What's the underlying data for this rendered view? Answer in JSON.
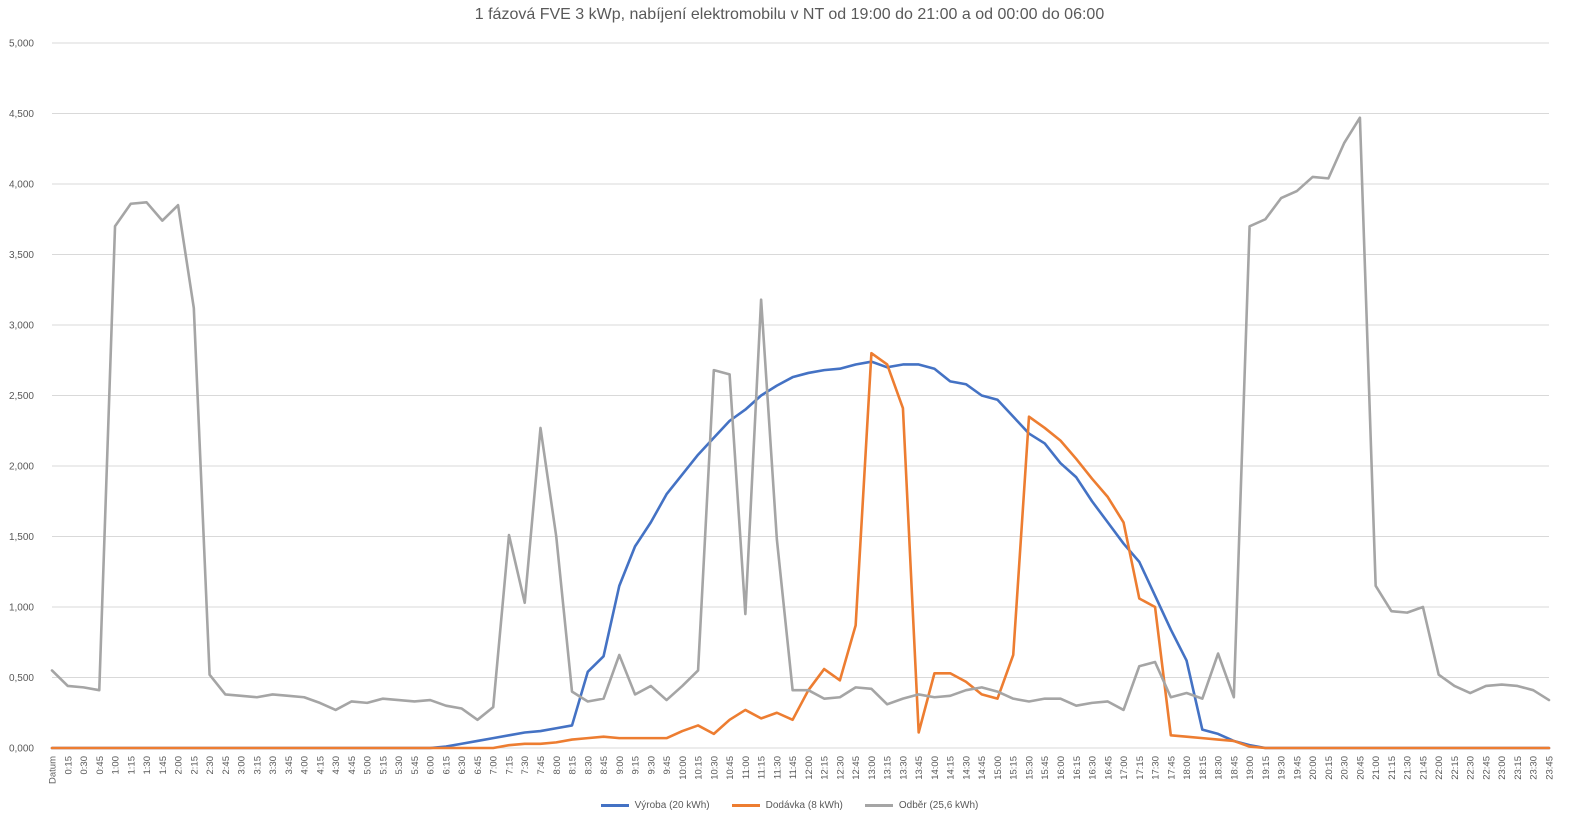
{
  "chart_data": {
    "type": "line",
    "title": "1 fázová FVE 3 kWp, nabíjení elektromobilu v NT od 19:00 do 21:00 a od  00:00 do 06:00",
    "xlabel": "",
    "ylabel": "",
    "ylim": [
      0,
      5
    ],
    "yticks": [
      "0,000",
      "0,500",
      "1,000",
      "1,500",
      "2,000",
      "2,500",
      "3,000",
      "3,500",
      "4,000",
      "4,500",
      "5,000"
    ],
    "grid": true,
    "legend_position": "bottom",
    "categories": [
      "Datum",
      "0:15",
      "0:30",
      "0:45",
      "1:00",
      "1:15",
      "1:30",
      "1:45",
      "2:00",
      "2:15",
      "2:30",
      "2:45",
      "3:00",
      "3:15",
      "3:30",
      "3:45",
      "4:00",
      "4:15",
      "4:30",
      "4:45",
      "5:00",
      "5:15",
      "5:30",
      "5:45",
      "6:00",
      "6:15",
      "6:30",
      "6:45",
      "7:00",
      "7:15",
      "7:30",
      "7:45",
      "8:00",
      "8:15",
      "8:30",
      "8:45",
      "9:00",
      "9:15",
      "9:30",
      "9:45",
      "10:00",
      "10:15",
      "10:30",
      "10:45",
      "11:00",
      "11:15",
      "11:30",
      "11:45",
      "12:00",
      "12:15",
      "12:30",
      "12:45",
      "13:00",
      "13:15",
      "13:30",
      "13:45",
      "14:00",
      "14:15",
      "14:30",
      "14:45",
      "15:00",
      "15:15",
      "15:30",
      "15:45",
      "16:00",
      "16:15",
      "16:30",
      "16:45",
      "17:00",
      "17:15",
      "17:30",
      "17:45",
      "18:00",
      "18:15",
      "18:30",
      "18:45",
      "19:00",
      "19:15",
      "19:30",
      "19:45",
      "20:00",
      "20:15",
      "20:30",
      "20:45",
      "21:00",
      "21:15",
      "21:30",
      "21:45",
      "22:00",
      "22:15",
      "22:30",
      "22:45",
      "23:00",
      "23:15",
      "23:30",
      "23:45"
    ],
    "series": [
      {
        "name": "Výroba (20 kWh)",
        "color": "#4472c4",
        "values": [
          0,
          0,
          0,
          0,
          0,
          0,
          0,
          0,
          0,
          0,
          0,
          0,
          0,
          0,
          0,
          0,
          0,
          0,
          0,
          0,
          0,
          0,
          0,
          0,
          0,
          0.01,
          0.03,
          0.05,
          0.07,
          0.09,
          0.11,
          0.12,
          0.14,
          0.16,
          0.54,
          0.65,
          1.15,
          1.43,
          1.6,
          1.8,
          1.94,
          2.08,
          2.2,
          2.32,
          2.4,
          2.5,
          2.57,
          2.63,
          2.66,
          2.68,
          2.69,
          2.72,
          2.74,
          2.7,
          2.72,
          2.72,
          2.69,
          2.6,
          2.58,
          2.5,
          2.47,
          2.35,
          2.23,
          2.16,
          2.02,
          1.92,
          1.75,
          1.6,
          1.45,
          1.32,
          1.08,
          0.84,
          0.62,
          0.13,
          0.1,
          0.05,
          0.02,
          0,
          0,
          0,
          0,
          0,
          0,
          0,
          0,
          0,
          0,
          0,
          0,
          0,
          0,
          0,
          0,
          0,
          0,
          0
        ]
      },
      {
        "name": "Dodávka (8 kWh)",
        "color": "#ed7d31",
        "values": [
          0,
          0,
          0,
          0,
          0,
          0,
          0,
          0,
          0,
          0,
          0,
          0,
          0,
          0,
          0,
          0,
          0,
          0,
          0,
          0,
          0,
          0,
          0,
          0,
          0,
          0,
          0,
          0,
          0,
          0.02,
          0.03,
          0.03,
          0.04,
          0.06,
          0.07,
          0.08,
          0.07,
          0.07,
          0.07,
          0.07,
          0.12,
          0.16,
          0.1,
          0.2,
          0.27,
          0.21,
          0.25,
          0.2,
          0.41,
          0.56,
          0.48,
          0.87,
          2.8,
          2.72,
          2.41,
          0.11,
          0.53,
          0.53,
          0.47,
          0.38,
          0.35,
          0.66,
          2.35,
          2.27,
          2.18,
          2.05,
          1.91,
          1.78,
          1.6,
          1.06,
          1.0,
          0.09,
          0.08,
          0.07,
          0.06,
          0.05,
          0.01,
          0,
          0,
          0,
          0,
          0,
          0,
          0,
          0,
          0,
          0,
          0,
          0,
          0,
          0,
          0,
          0,
          0,
          0,
          0
        ]
      },
      {
        "name": "Odběr (25,6 kWh)",
        "color": "#a5a5a5",
        "values": [
          0.55,
          0.44,
          0.43,
          0.41,
          3.7,
          3.86,
          3.87,
          3.74,
          3.85,
          3.12,
          0.52,
          0.38,
          0.37,
          0.36,
          0.38,
          0.37,
          0.36,
          0.32,
          0.27,
          0.33,
          0.32,
          0.35,
          0.34,
          0.33,
          0.34,
          0.3,
          0.28,
          0.2,
          0.29,
          1.51,
          1.03,
          2.27,
          1.5,
          0.4,
          0.33,
          0.35,
          0.66,
          0.38,
          0.44,
          0.34,
          0.44,
          0.55,
          2.68,
          2.65,
          0.95,
          3.18,
          1.48,
          0.41,
          0.41,
          0.35,
          0.36,
          0.43,
          0.42,
          0.31,
          0.35,
          0.38,
          0.36,
          0.37,
          0.41,
          0.43,
          0.4,
          0.35,
          0.33,
          0.35,
          0.35,
          0.3,
          0.32,
          0.33,
          0.27,
          0.58,
          0.61,
          0.36,
          0.39,
          0.35,
          0.67,
          0.36,
          3.7,
          3.75,
          3.9,
          3.95,
          4.05,
          4.04,
          4.29,
          4.47,
          1.15,
          0.97,
          0.96,
          1.0,
          0.52,
          0.44,
          0.39,
          0.44,
          0.45,
          0.44,
          0.41,
          0.34
        ]
      }
    ]
  }
}
